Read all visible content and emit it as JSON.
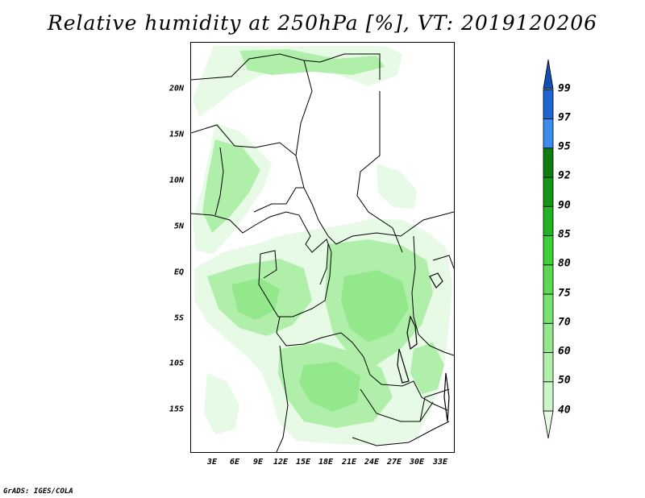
{
  "title": "Relative humidity at 250hPa [%], VT: 2019120206",
  "footer": "GrADS: IGES/COLA",
  "axes": {
    "lat_labels": [
      "20N",
      "15N",
      "10N",
      "5N",
      "EQ",
      "5S",
      "10S",
      "15S"
    ],
    "lon_labels": [
      "3E",
      "6E",
      "9E",
      "12E",
      "15E",
      "18E",
      "21E",
      "24E",
      "27E",
      "30E",
      "33E"
    ]
  },
  "colorbar": {
    "labels": [
      "40",
      "50",
      "60",
      "70",
      "75",
      "80",
      "85",
      "90",
      "92",
      "95",
      "97",
      "99"
    ],
    "colors": [
      "#e6fae6",
      "#cbf5c8",
      "#b0efa9",
      "#94e88c",
      "#78e26e",
      "#5cd852",
      "#3ccf36",
      "#23b223",
      "#149614",
      "#0f7d0f",
      "#3c8cf0",
      "#1e64d2",
      "#1450b4"
    ]
  },
  "chart_data": {
    "type": "map",
    "title": "Relative humidity at 250hPa [%], VT: 2019120206",
    "variable": "Relative humidity at 250hPa",
    "unit": "%",
    "valid_time": "2019120206",
    "contour_levels": [
      40,
      50,
      60,
      70,
      75,
      80,
      85,
      90,
      92,
      95,
      97,
      99
    ]
  }
}
